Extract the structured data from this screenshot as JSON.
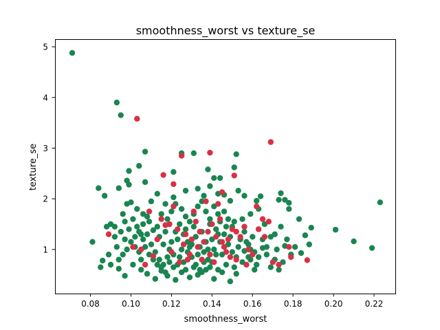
{
  "chart_data": {
    "type": "scatter",
    "title": "smoothness_worst vs texture_se",
    "xlabel": "smoothness_worst",
    "ylabel": "texture_se",
    "xlim": [
      0.0625,
      0.2305
    ],
    "ylim": [
      0.13,
      5.15
    ],
    "xticks": [
      0.08,
      0.1,
      0.12,
      0.14,
      0.16,
      0.18,
      0.2,
      0.22
    ],
    "xtick_labels": [
      "0.08",
      "0.10",
      "0.12",
      "0.14",
      "0.16",
      "0.18",
      "0.20",
      "0.22"
    ],
    "yticks": [
      1,
      2,
      3,
      4,
      5
    ],
    "ytick_labels": [
      "1",
      "2",
      "3",
      "4",
      "5"
    ],
    "grid": false,
    "colors": {
      "green": "#1a8550",
      "red": "#d63145"
    },
    "series": [
      {
        "color": "#1a8550",
        "points": [
          [
            0.071,
            4.88
          ],
          [
            0.093,
            3.9
          ],
          [
            0.095,
            3.65
          ],
          [
            0.107,
            2.93
          ],
          [
            0.121,
            2.53
          ],
          [
            0.125,
            2.9
          ],
          [
            0.131,
            2.9
          ],
          [
            0.138,
            2.58
          ],
          [
            0.144,
            2.41
          ],
          [
            0.152,
            2.88
          ],
          [
            0.151,
            2.62
          ],
          [
            0.099,
            2.55
          ],
          [
            0.104,
            2.65
          ],
          [
            0.094,
            2.21
          ],
          [
            0.084,
            2.21
          ],
          [
            0.087,
            2.06
          ],
          [
            0.098,
            2.36
          ],
          [
            0.099,
            2.28
          ],
          [
            0.107,
            2.33
          ],
          [
            0.113,
            2.1
          ],
          [
            0.117,
            1.9
          ],
          [
            0.121,
            2.03
          ],
          [
            0.127,
            2.16
          ],
          [
            0.133,
            2.2
          ],
          [
            0.136,
            2.06
          ],
          [
            0.139,
            2.25
          ],
          [
            0.141,
            2.41
          ],
          [
            0.143,
            2.1
          ],
          [
            0.146,
            2.08
          ],
          [
            0.149,
            1.96
          ],
          [
            0.153,
            2.16
          ],
          [
            0.156,
            2.06
          ],
          [
            0.164,
            2.05
          ],
          [
            0.162,
            1.96
          ],
          [
            0.174,
            2.11
          ],
          [
            0.173,
            1.98
          ],
          [
            0.176,
            1.98
          ],
          [
            0.178,
            1.92
          ],
          [
            0.183,
            1.6
          ],
          [
            0.189,
            1.43
          ],
          [
            0.201,
            1.39
          ],
          [
            0.21,
            1.16
          ],
          [
            0.219,
            1.03
          ],
          [
            0.223,
            1.93
          ],
          [
            0.186,
            1.28
          ],
          [
            0.188,
            1.1
          ],
          [
            0.178,
            1.8
          ],
          [
            0.172,
            1.0
          ],
          [
            0.167,
            1.05
          ],
          [
            0.165,
            1.03
          ],
          [
            0.159,
            1.0
          ],
          [
            0.156,
            0.97
          ],
          [
            0.162,
            0.7
          ],
          [
            0.169,
            0.65
          ],
          [
            0.173,
            0.6
          ],
          [
            0.176,
            1.07
          ],
          [
            0.179,
            0.9
          ],
          [
            0.181,
            1.05
          ],
          [
            0.184,
            0.93
          ],
          [
            0.161,
            0.6
          ],
          [
            0.158,
            0.85
          ],
          [
            0.152,
            0.52
          ],
          [
            0.149,
            0.37
          ],
          [
            0.145,
            0.55
          ],
          [
            0.141,
            0.42
          ],
          [
            0.137,
            0.6
          ],
          [
            0.133,
            0.5
          ],
          [
            0.129,
            0.45
          ],
          [
            0.125,
            0.55
          ],
          [
            0.122,
            0.4
          ],
          [
            0.118,
            0.48
          ],
          [
            0.115,
            0.58
          ],
          [
            0.112,
            0.42
          ],
          [
            0.108,
            0.52
          ],
          [
            0.105,
            0.6
          ],
          [
            0.101,
            0.7
          ],
          [
            0.097,
            0.48
          ],
          [
            0.094,
            0.62
          ],
          [
            0.09,
            0.7
          ],
          [
            0.086,
            0.78
          ],
          [
            0.085,
            0.65
          ],
          [
            0.081,
            1.15
          ],
          [
            0.088,
            1.45
          ],
          [
            0.09,
            1.5
          ],
          [
            0.092,
            1.25
          ],
          [
            0.096,
            1.7
          ],
          [
            0.098,
            1.9
          ],
          [
            0.1,
            1.93
          ],
          [
            0.103,
            1.8
          ],
          [
            0.106,
            1.7
          ],
          [
            0.109,
            1.55
          ],
          [
            0.111,
            1.38
          ],
          [
            0.114,
            1.25
          ],
          [
            0.116,
            1.1
          ],
          [
            0.119,
            1.0
          ],
          [
            0.121,
            0.9
          ],
          [
            0.124,
            0.85
          ],
          [
            0.126,
            0.75
          ],
          [
            0.128,
            0.95
          ],
          [
            0.13,
            1.1
          ],
          [
            0.132,
            1.25
          ],
          [
            0.134,
            1.05
          ],
          [
            0.136,
            0.95
          ],
          [
            0.138,
            0.8
          ],
          [
            0.14,
            0.75
          ],
          [
            0.142,
            0.9
          ],
          [
            0.144,
            1.15
          ],
          [
            0.146,
            1.3
          ],
          [
            0.148,
            1.1
          ],
          [
            0.15,
            0.95
          ],
          [
            0.152,
            0.85
          ],
          [
            0.154,
            1.2
          ],
          [
            0.156,
            1.35
          ],
          [
            0.158,
            1.1
          ],
          [
            0.16,
            1.25
          ],
          [
            0.163,
            1.4
          ],
          [
            0.166,
            1.5
          ],
          [
            0.169,
            1.25
          ],
          [
            0.171,
            1.3
          ],
          [
            0.174,
            1.45
          ],
          [
            0.177,
            1.2
          ],
          [
            0.102,
            1.05
          ],
          [
            0.104,
            0.95
          ],
          [
            0.106,
            1.2
          ],
          [
            0.108,
            1.3
          ],
          [
            0.11,
            1.1
          ],
          [
            0.112,
            0.95
          ],
          [
            0.114,
            0.8
          ],
          [
            0.116,
            0.7
          ],
          [
            0.118,
            0.85
          ],
          [
            0.12,
            1.15
          ],
          [
            0.122,
            1.35
          ],
          [
            0.124,
            1.5
          ],
          [
            0.126,
            1.3
          ],
          [
            0.128,
            1.15
          ],
          [
            0.13,
            0.85
          ],
          [
            0.132,
            0.7
          ],
          [
            0.134,
            0.6
          ],
          [
            0.136,
            0.75
          ],
          [
            0.138,
            1.0
          ],
          [
            0.14,
            1.2
          ],
          [
            0.142,
            1.4
          ],
          [
            0.144,
            1.55
          ],
          [
            0.146,
            1.75
          ],
          [
            0.148,
            1.6
          ],
          [
            0.15,
            1.45
          ],
          [
            0.125,
            1.8
          ],
          [
            0.127,
            1.65
          ],
          [
            0.129,
            1.55
          ],
          [
            0.131,
            1.7
          ],
          [
            0.133,
            1.85
          ],
          [
            0.135,
            1.95
          ],
          [
            0.137,
            1.75
          ],
          [
            0.139,
            1.6
          ],
          [
            0.141,
            1.85
          ],
          [
            0.143,
            1.7
          ],
          [
            0.118,
            1.6
          ],
          [
            0.12,
            1.75
          ],
          [
            0.122,
            1.9
          ],
          [
            0.115,
            1.7
          ],
          [
            0.11,
            1.95
          ],
          [
            0.108,
            1.65
          ],
          [
            0.106,
            1.5
          ],
          [
            0.104,
            1.35
          ],
          [
            0.102,
            1.25
          ],
          [
            0.1,
            1.15
          ],
          [
            0.098,
            1.0
          ],
          [
            0.096,
            0.9
          ],
          [
            0.094,
            0.8
          ],
          [
            0.092,
            1.45
          ],
          [
            0.095,
            1.35
          ],
          [
            0.097,
            1.55
          ],
          [
            0.099,
            1.4
          ],
          [
            0.101,
            1.6
          ],
          [
            0.103,
            1.45
          ],
          [
            0.105,
            1.3
          ],
          [
            0.107,
            1.05
          ],
          [
            0.109,
            0.9
          ],
          [
            0.111,
            0.8
          ],
          [
            0.113,
            0.7
          ],
          [
            0.115,
            0.65
          ],
          [
            0.117,
            0.55
          ],
          [
            0.119,
            0.75
          ],
          [
            0.121,
            0.65
          ],
          [
            0.123,
            0.7
          ],
          [
            0.127,
            0.6
          ],
          [
            0.131,
            0.65
          ],
          [
            0.135,
            0.55
          ],
          [
            0.139,
            0.65
          ],
          [
            0.143,
            0.6
          ],
          [
            0.147,
            0.7
          ],
          [
            0.151,
            0.65
          ],
          [
            0.155,
            0.75
          ],
          [
            0.159,
            0.8
          ],
          [
            0.163,
            0.85
          ],
          [
            0.167,
            0.9
          ],
          [
            0.171,
            0.8
          ],
          [
            0.175,
            0.75
          ],
          [
            0.125,
            1.0
          ],
          [
            0.129,
            1.05
          ],
          [
            0.133,
            0.9
          ],
          [
            0.137,
            1.15
          ],
          [
            0.141,
            1.0
          ],
          [
            0.145,
            0.9
          ],
          [
            0.149,
            1.25
          ],
          [
            0.153,
            1.05
          ],
          [
            0.157,
            1.15
          ],
          [
            0.161,
            0.95
          ],
          [
            0.165,
            1.2
          ],
          [
            0.113,
            1.45
          ],
          [
            0.117,
            1.35
          ],
          [
            0.119,
            1.5
          ],
          [
            0.123,
            1.2
          ],
          [
            0.127,
            1.4
          ],
          [
            0.131,
            1.45
          ],
          [
            0.135,
            1.35
          ],
          [
            0.139,
            1.5
          ],
          [
            0.143,
            1.3
          ],
          [
            0.147,
            1.45
          ],
          [
            0.151,
            1.55
          ],
          [
            0.155,
            1.6
          ],
          [
            0.159,
            1.7
          ],
          [
            0.163,
            1.8
          ],
          [
            0.105,
            0.8
          ],
          [
            0.097,
            1.2
          ],
          [
            0.093,
            1.05
          ],
          [
            0.089,
            0.9
          ]
        ]
      },
      {
        "color": "#d63145",
        "points": [
          [
            0.103,
            3.58
          ],
          [
            0.169,
            3.12
          ],
          [
            0.125,
            2.85
          ],
          [
            0.139,
            2.91
          ],
          [
            0.116,
            2.47
          ],
          [
            0.121,
            2.29
          ],
          [
            0.145,
            2.13
          ],
          [
            0.151,
            2.46
          ],
          [
            0.089,
            1.3
          ],
          [
            0.101,
            1.05
          ],
          [
            0.109,
            1.75
          ],
          [
            0.115,
            1.6
          ],
          [
            0.117,
            1.48
          ],
          [
            0.119,
            1.5
          ],
          [
            0.123,
            1.4
          ],
          [
            0.126,
            1.1
          ],
          [
            0.128,
            0.8
          ],
          [
            0.13,
            1.2
          ],
          [
            0.132,
            1.55
          ],
          [
            0.134,
            1.35
          ],
          [
            0.136,
            1.15
          ],
          [
            0.138,
            1.35
          ],
          [
            0.14,
            1.5
          ],
          [
            0.142,
            1.25
          ],
          [
            0.144,
            1.6
          ],
          [
            0.146,
            1.05
          ],
          [
            0.148,
            1.2
          ],
          [
            0.15,
            1.4
          ],
          [
            0.152,
            1.35
          ],
          [
            0.154,
            1.25
          ],
          [
            0.156,
            1.45
          ],
          [
            0.158,
            1.0
          ],
          [
            0.16,
            0.9
          ],
          [
            0.163,
            1.4
          ],
          [
            0.165,
            1.6
          ],
          [
            0.168,
            1.55
          ],
          [
            0.17,
            0.75
          ],
          [
            0.173,
            0.7
          ],
          [
            0.178,
            1.05
          ],
          [
            0.179,
            0.85
          ],
          [
            0.187,
            0.79
          ],
          [
            0.157,
            0.7
          ],
          [
            0.152,
            0.8
          ],
          [
            0.147,
            0.95
          ],
          [
            0.141,
            0.75
          ],
          [
            0.135,
            0.8
          ],
          [
            0.129,
            0.9
          ],
          [
            0.124,
            0.75
          ],
          [
            0.12,
            0.95
          ],
          [
            0.113,
            1.2
          ],
          [
            0.111,
            0.87
          ],
          [
            0.107,
            0.7
          ],
          [
            0.105,
            1.0
          ],
          [
            0.121,
            1.85
          ],
          [
            0.131,
            1.75
          ],
          [
            0.137,
            1.95
          ],
          [
            0.162,
            1.85
          ],
          [
            0.143,
            1.9
          ],
          [
            0.127,
            1.3
          ],
          [
            0.133,
            1.05
          ],
          [
            0.139,
            0.9
          ],
          [
            0.145,
            1.15
          ],
          [
            0.149,
            0.85
          ],
          [
            0.166,
            1.25
          ]
        ]
      }
    ]
  }
}
